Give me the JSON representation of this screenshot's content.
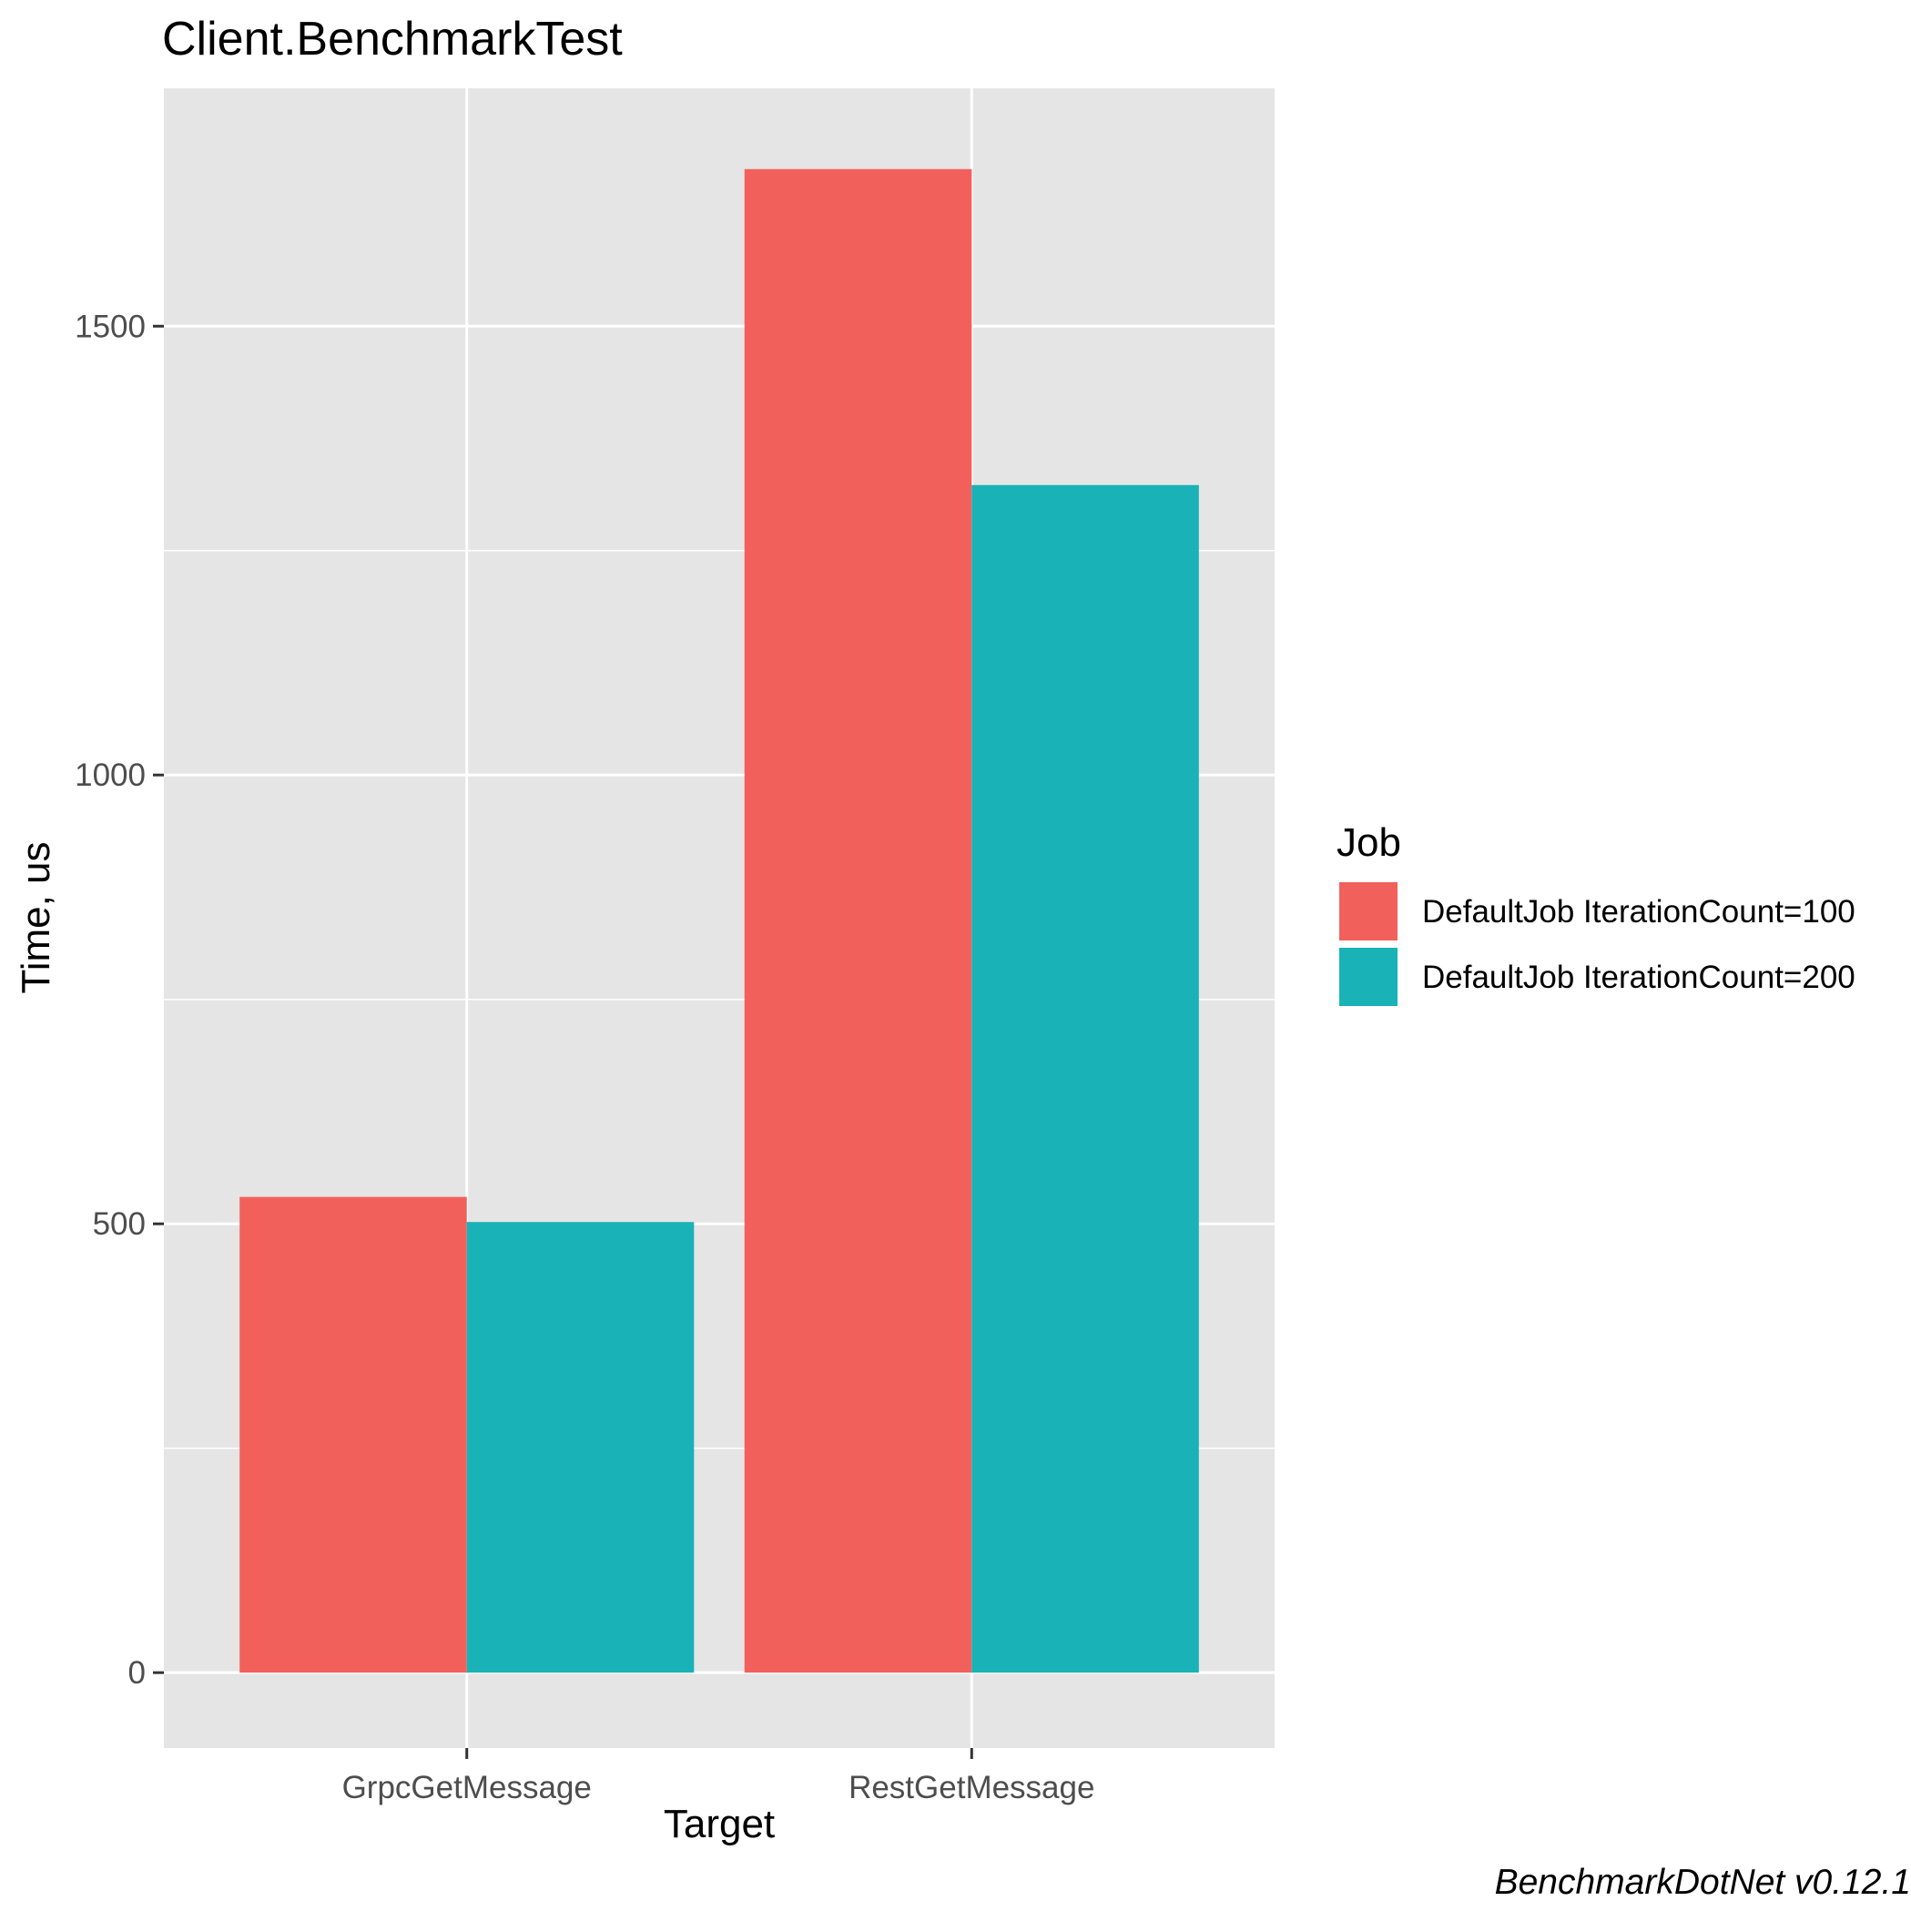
{
  "chart_data": {
    "type": "bar",
    "title": "Client.BenchmarkTest",
    "xlabel": "Target",
    "ylabel": "Time, us",
    "categories": [
      "GrpcGetMessage",
      "RestGetMessage"
    ],
    "series": [
      {
        "name": "DefaultJob IterationCount=100",
        "values": [
          530,
          1675
        ],
        "color": "#F2605C"
      },
      {
        "name": "DefaultJob IterationCount=200",
        "values": [
          502,
          1323
        ],
        "color": "#19B2B6"
      }
    ],
    "ylim": [
      -84,
      1765
    ],
    "yticks": [
      0,
      500,
      1000,
      1500
    ],
    "ytick_labels": [
      "0",
      "500",
      "1000",
      "1500"
    ],
    "y_minor_ticks": [
      250,
      750,
      1250
    ],
    "grid": true,
    "panel_color": "#E5E5E5",
    "legend": {
      "title": "Job",
      "placement": "right"
    },
    "caption": "BenchmarkDotNet v0.12.1"
  }
}
